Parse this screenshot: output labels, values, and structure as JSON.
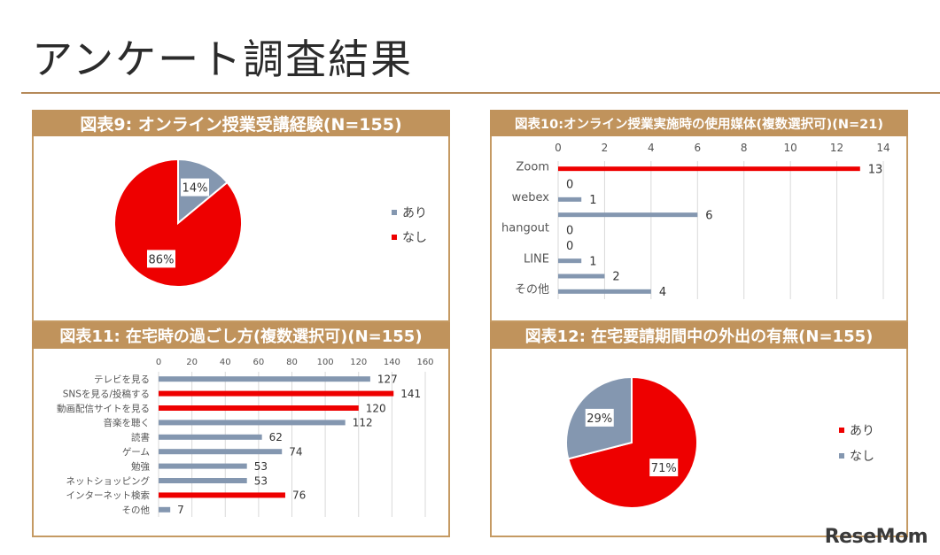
{
  "page": {
    "title": "アンケート調査結果",
    "watermark": "ReseMom"
  },
  "colors": {
    "accent": "#c0935c",
    "red": "#ee0000",
    "gray": "#8497b0"
  },
  "chart_data": [
    {
      "id": "fig9",
      "type": "pie",
      "title": "図表9: オンライン授業受講経験(N=155)",
      "labels": [
        "あり",
        "なし"
      ],
      "values": [
        14,
        86
      ],
      "value_labels": [
        "14%",
        "86%"
      ],
      "colors": [
        "#8497b0",
        "#ee0000"
      ],
      "legend": "right"
    },
    {
      "id": "fig10",
      "type": "bar",
      "orientation": "horizontal",
      "title": "図表10:オンライン授業実施時の使用媒体(複数選択可)(N=21)",
      "categories": [
        "Zoom",
        "",
        "webex",
        "",
        "hangout",
        "",
        "LINE",
        "",
        "その他"
      ],
      "values": [
        13,
        0,
        1,
        6,
        0,
        0,
        1,
        2,
        4
      ],
      "colors": [
        "red",
        "gray",
        "gray",
        "gray",
        "gray",
        "gray",
        "gray",
        "gray",
        "gray"
      ],
      "xlim": [
        0,
        14
      ],
      "ticks": [
        "0",
        "2",
        "4",
        "6",
        "8",
        "10",
        "12",
        "14"
      ],
      "grid": true
    },
    {
      "id": "fig11",
      "type": "bar",
      "orientation": "horizontal",
      "title": "図表11: 在宅時の過ごし方(複数選択可)(N=155)",
      "categories": [
        "テレビを見る",
        "SNSを見る/投稿する",
        "動画配信サイトを見る",
        "音楽を聴く",
        "読書",
        "ゲーム",
        "勉強",
        "ネットショッピング",
        "インターネット検索",
        "その他"
      ],
      "values": [
        127,
        141,
        120,
        112,
        62,
        74,
        53,
        53,
        76,
        7
      ],
      "colors": [
        "gray",
        "red",
        "red",
        "gray",
        "gray",
        "gray",
        "gray",
        "gray",
        "red",
        "gray"
      ],
      "xlim": [
        0,
        160
      ],
      "ticks": [
        "0",
        "20",
        "40",
        "60",
        "80",
        "100",
        "120",
        "140",
        "160"
      ],
      "grid": true
    },
    {
      "id": "fig12",
      "type": "pie",
      "title": "図表12: 在宅要請期間中の外出の有無(N=155)",
      "labels": [
        "あり",
        "なし"
      ],
      "values": [
        71,
        29
      ],
      "value_labels": [
        "71%",
        "29%"
      ],
      "colors": [
        "#ee0000",
        "#8497b0"
      ],
      "legend": "right"
    }
  ]
}
